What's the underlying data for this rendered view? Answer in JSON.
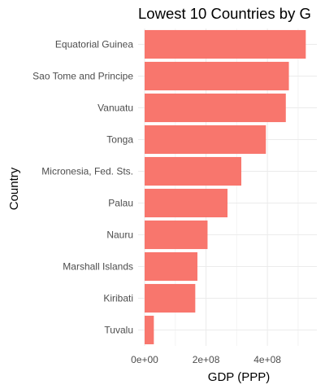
{
  "chart_data": {
    "type": "bar",
    "orientation": "horizontal",
    "title": "Lowest 10 Countries by G",
    "xlabel": "GDP (PPP)",
    "ylabel": "Country",
    "categories": [
      "Equatorial Guinea",
      "Sao Tome and Principe",
      "Vanuatu",
      "Tonga",
      "Micronesia, Fed. Sts.",
      "Palau",
      "Nauru",
      "Marshall Islands",
      "Kiribati",
      "Tuvalu"
    ],
    "values": [
      525000000,
      470000000,
      460000000,
      395000000,
      315000000,
      270000000,
      205000000,
      172000000,
      165000000,
      30000000
    ],
    "xlim": [
      0,
      540000000
    ],
    "xticks": [
      0,
      200000000,
      400000000
    ],
    "xtick_labels": [
      "0e+00",
      "2e+08",
      "4e+08"
    ],
    "grid": true,
    "bar_color": "#F8766D",
    "legend": "none"
  }
}
